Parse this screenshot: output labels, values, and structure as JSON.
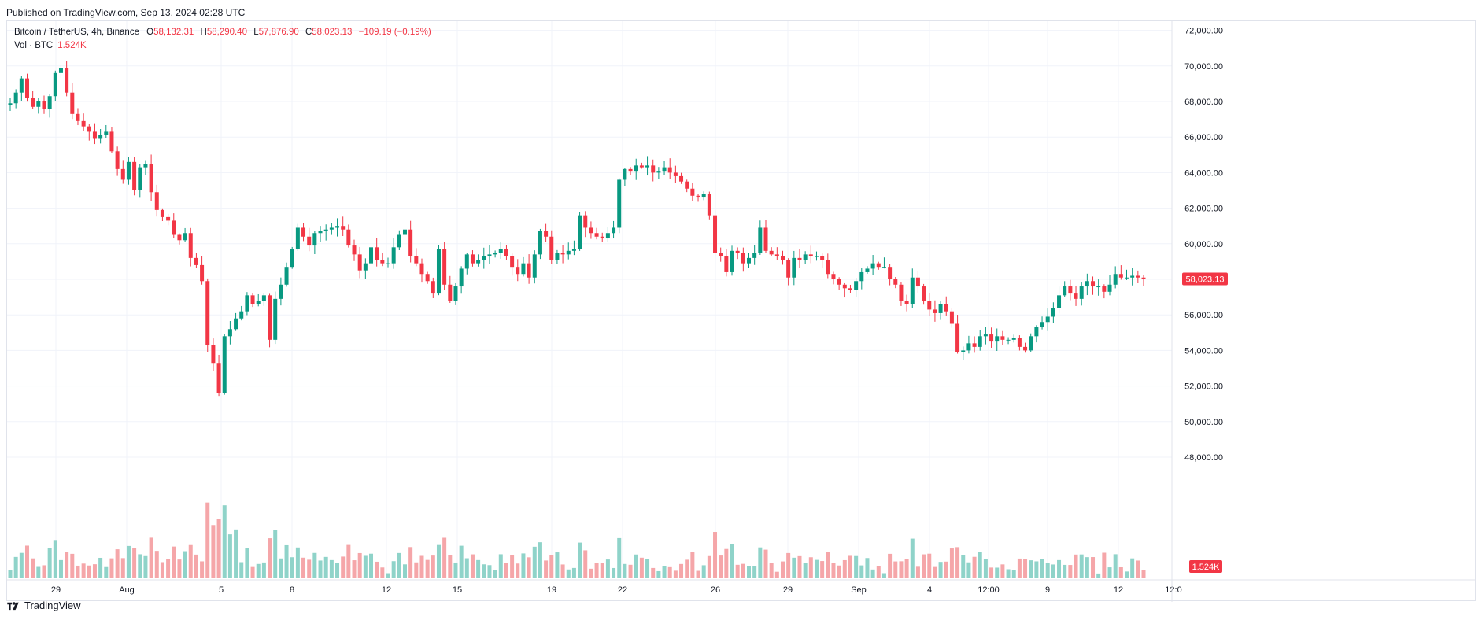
{
  "published": "Published on TradingView.com, Sep 13, 2024 02:28 UTC",
  "legend": {
    "symbol": "Bitcoin / TetherUS, 4h, Binance",
    "o_label": "O",
    "o": "58,132.31",
    "h_label": "H",
    "h": "58,290.40",
    "l_label": "L",
    "l": "57,876.90",
    "c_label": "C",
    "c": "58,023.13",
    "change": "−109.19 (−0.19%)"
  },
  "volume_legend": {
    "label": "Vol · BTC",
    "value": "1.524K"
  },
  "brand": "TradingView",
  "colors": {
    "up": "#089981",
    "down": "#f23645",
    "vol_up": "#8fd3c9",
    "vol_down": "#f5a6a9",
    "grid": "#f0f3fa"
  },
  "chart_data": {
    "type": "candlestick",
    "interval": "4h",
    "y_ticks": [
      "72,000.00",
      "70,000.00",
      "68,000.00",
      "66,000.00",
      "64,000.00",
      "62,000.00",
      "60,000.00",
      "58,000.00",
      "56,000.00",
      "54,000.00",
      "52,000.00",
      "50,000.00",
      "48,000.00"
    ],
    "ylim": [
      46500,
      72700
    ],
    "x_ticks": [
      "29",
      "Aug",
      "5",
      "8",
      "12",
      "15",
      "19",
      "22",
      "26",
      "29",
      "Sep",
      "4",
      "12:00",
      "9",
      "12",
      "12:0"
    ],
    "last_price_label": "58,023.13",
    "last_volume_label": "1.524K",
    "close_path": [
      67900,
      68500,
      69300,
      68200,
      67700,
      68000,
      67600,
      68300,
      69600,
      69900,
      68500,
      67300,
      66900,
      66600,
      66300,
      65900,
      66100,
      66300,
      65200,
      64200,
      63600,
      64600,
      63000,
      64300,
      64500,
      62900,
      61900,
      61500,
      61300,
      60500,
      60200,
      60600,
      59200,
      58800,
      57900,
      54300,
      53300,
      51600,
      54800,
      55200,
      55800,
      56200,
      57100,
      56600,
      56800,
      57100,
      54600,
      56900,
      57700,
      58700,
      59700,
      60900,
      60400,
      59900,
      60600,
      60700,
      60800,
      60900,
      61000,
      60800,
      59900,
      59400,
      58500,
      58900,
      59800,
      59100,
      58900,
      58900,
      59800,
      60500,
      60800,
      59300,
      58900,
      58300,
      57900,
      57200,
      59700,
      57700,
      56800,
      57600,
      58600,
      59400,
      58900,
      59100,
      59300,
      59400,
      59500,
      59700,
      59300,
      58700,
      58300,
      58900,
      58100,
      59400,
      60700,
      60400,
      59100,
      59500,
      59400,
      59600,
      59700,
      61600,
      60900,
      60600,
      60400,
      60300,
      60600,
      60900,
      63600,
      64200,
      64100,
      64400,
      64300,
      64400,
      64000,
      64100,
      64300,
      64000,
      63800,
      63500,
      63100,
      62700,
      62600,
      62800,
      61600,
      59500,
      59300,
      58400,
      59600,
      59500,
      58900,
      59200,
      59500,
      60900,
      59600,
      59400,
      59300,
      59100,
      58100,
      59200,
      59100,
      59400,
      59300,
      59300,
      59100,
      58300,
      58000,
      57700,
      57500,
      57400,
      57900,
      58400,
      58600,
      58900,
      58700,
      58700,
      58000,
      57700,
      56800,
      56600,
      58100,
      57600,
      56800,
      56300,
      56100,
      56600,
      56200,
      55500,
      53900,
      54000,
      54400,
      54200,
      54800,
      54900,
      54500,
      54800,
      54600,
      54600,
      54700,
      54200,
      54000,
      54800,
      55300,
      55600,
      55900,
      56400,
      57100,
      57600,
      57200,
      56900,
      57600,
      57900,
      57600,
      57600,
      57300,
      57700,
      58300,
      58100,
      58100,
      58200,
      58100,
      58023
    ]
  }
}
